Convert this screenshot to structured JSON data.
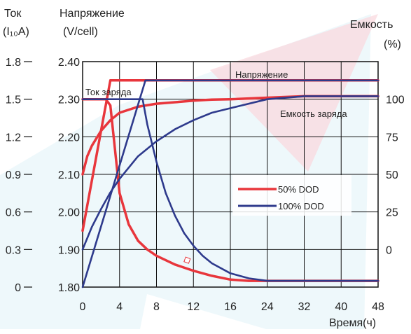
{
  "chart_data": {
    "type": "line",
    "axes": {
      "current": {
        "title": "Ток",
        "unit": "(I₁₀A)",
        "ticks": [
          "0",
          "0.3",
          "0.6",
          "0.9",
          "1.2",
          "1.5",
          "1.8"
        ]
      },
      "voltage": {
        "title": "Напряжение",
        "unit": "(V/cell)",
        "ticks": [
          "1.80",
          "1.90",
          "2.00",
          "2.10",
          "2.20",
          "2.30",
          "2.40"
        ],
        "range": [
          1.8,
          2.4
        ]
      },
      "capacity": {
        "title": "Емкость",
        "unit": "(%)",
        "ticks": [
          "0",
          "25",
          "50",
          "75",
          "100"
        ]
      },
      "time": {
        "title": "Время(ч)",
        "ticks": [
          "0",
          "4",
          "8",
          "12",
          "16",
          "24",
          "32",
          "40",
          "48"
        ]
      }
    },
    "legend": [
      {
        "label": "50% DOD",
        "color": "#e8363c"
      },
      {
        "label": "100% DOD",
        "color": "#2e3a8c"
      }
    ],
    "annotations": {
      "voltage": "Напряжение",
      "charge_current": "Ток заряда",
      "charge_capacity": "Емкость заряда"
    },
    "series": [
      {
        "name": "50% DOD",
        "quantity": "voltage",
        "unit": "V/cell",
        "points": [
          [
            0,
            1.95
          ],
          [
            3,
            2.35
          ],
          [
            48,
            2.35
          ]
        ]
      },
      {
        "name": "50% DOD",
        "quantity": "current",
        "unit": "I10A",
        "points": [
          [
            0,
            1.5
          ],
          [
            2.5,
            1.5
          ],
          [
            3,
            1.45
          ],
          [
            3.5,
            1.1
          ],
          [
            4,
            0.75
          ],
          [
            5,
            0.5
          ],
          [
            6,
            0.37
          ],
          [
            7,
            0.3
          ],
          [
            8,
            0.25
          ],
          [
            10,
            0.18
          ],
          [
            12,
            0.13
          ],
          [
            14,
            0.09
          ],
          [
            16,
            0.06
          ],
          [
            20,
            0.05
          ],
          [
            24,
            0.05
          ],
          [
            48,
            0.05
          ]
        ]
      },
      {
        "name": "50% DOD",
        "quantity": "capacity",
        "unit": "%",
        "points": [
          [
            0,
            50
          ],
          [
            0.5,
            62
          ],
          [
            1,
            69
          ],
          [
            2,
            79
          ],
          [
            3,
            86
          ],
          [
            4,
            91
          ],
          [
            6,
            95
          ],
          [
            8,
            97
          ],
          [
            10,
            98
          ],
          [
            12,
            99
          ],
          [
            14,
            99.7
          ],
          [
            16,
            100
          ],
          [
            24,
            101
          ],
          [
            32,
            102
          ],
          [
            40,
            102
          ],
          [
            48,
            102
          ]
        ]
      },
      {
        "name": "100% DOD",
        "quantity": "voltage",
        "unit": "V/cell",
        "points": [
          [
            0,
            1.8
          ],
          [
            6.8,
            2.35
          ],
          [
            48,
            2.35
          ]
        ]
      },
      {
        "name": "100% DOD",
        "quantity": "current",
        "unit": "I10A",
        "points": [
          [
            0,
            1.5
          ],
          [
            6.5,
            1.5
          ],
          [
            7,
            1.3
          ],
          [
            8,
            1.0
          ],
          [
            9,
            0.75
          ],
          [
            10,
            0.57
          ],
          [
            11,
            0.43
          ],
          [
            12,
            0.33
          ],
          [
            13,
            0.25
          ],
          [
            14,
            0.19
          ],
          [
            16,
            0.11
          ],
          [
            20,
            0.07
          ],
          [
            24,
            0.05
          ],
          [
            32,
            0.05
          ],
          [
            48,
            0.05
          ]
        ]
      },
      {
        "name": "100% DOD",
        "quantity": "capacity",
        "unit": "%",
        "points": [
          [
            0,
            0
          ],
          [
            1,
            15
          ],
          [
            2,
            27
          ],
          [
            3,
            38
          ],
          [
            4,
            47
          ],
          [
            6,
            62
          ],
          [
            8,
            72
          ],
          [
            10,
            80
          ],
          [
            12,
            86
          ],
          [
            14,
            91
          ],
          [
            16,
            94
          ],
          [
            24,
            100
          ],
          [
            32,
            102
          ],
          [
            40,
            102
          ],
          [
            48,
            102
          ]
        ]
      }
    ]
  }
}
